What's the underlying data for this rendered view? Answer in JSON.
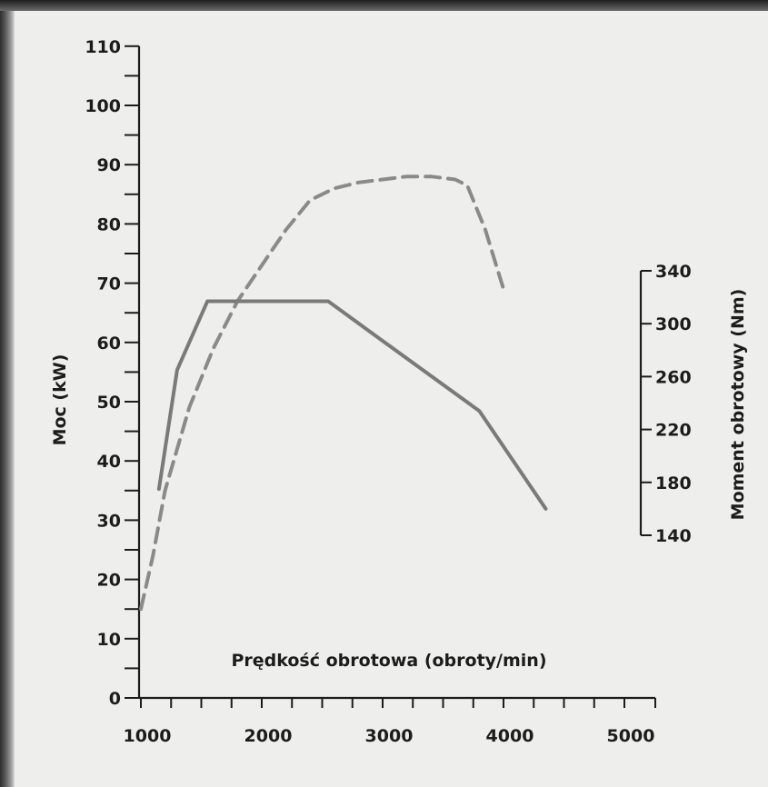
{
  "chart_data": {
    "type": "line",
    "xlabel": "Prędkość obrotowa (obroty/min)",
    "ylabel": "Moc (kW)",
    "y2label": "Moment obrotowy (Nm)",
    "xlim": [
      900,
      5000
    ],
    "ylim": [
      0,
      110
    ],
    "y2lim": [
      140,
      340
    ],
    "x_ticks": [
      "1000",
      "2000",
      "3000",
      "4000",
      "5000"
    ],
    "y_ticks": [
      "0",
      "10",
      "20",
      "30",
      "40",
      "50",
      "60",
      "70",
      "80",
      "90",
      "100",
      "110"
    ],
    "y2_ticks": [
      "140",
      "180",
      "220",
      "260",
      "300",
      "340"
    ],
    "grid": false,
    "colors": {
      "power": "#8a8a8a",
      "torque": "#7a7a7a",
      "axis": "#1c1c1c",
      "background": "#eeeeec"
    },
    "series": [
      {
        "axis": "left",
        "style": "dashed",
        "points": [
          [
            1000,
            15
          ],
          [
            1100,
            24
          ],
          [
            1200,
            35
          ],
          [
            1400,
            49
          ],
          [
            1600,
            59
          ],
          [
            1800,
            67
          ],
          [
            2000,
            73
          ],
          [
            2200,
            79
          ],
          [
            2400,
            84
          ],
          [
            2600,
            86
          ],
          [
            2800,
            87
          ],
          [
            3000,
            87.5
          ],
          [
            3200,
            88
          ],
          [
            3400,
            88
          ],
          [
            3600,
            87.5
          ],
          [
            3700,
            86.5
          ],
          [
            3850,
            79
          ],
          [
            4000,
            69
          ]
        ]
      },
      {
        "axis": "right",
        "style": "solid",
        "points": [
          [
            1150,
            175
          ],
          [
            1300,
            265
          ],
          [
            1550,
            317
          ],
          [
            2550,
            317
          ],
          [
            3000,
            287
          ],
          [
            3800,
            234
          ],
          [
            4350,
            160
          ]
        ]
      }
    ]
  }
}
